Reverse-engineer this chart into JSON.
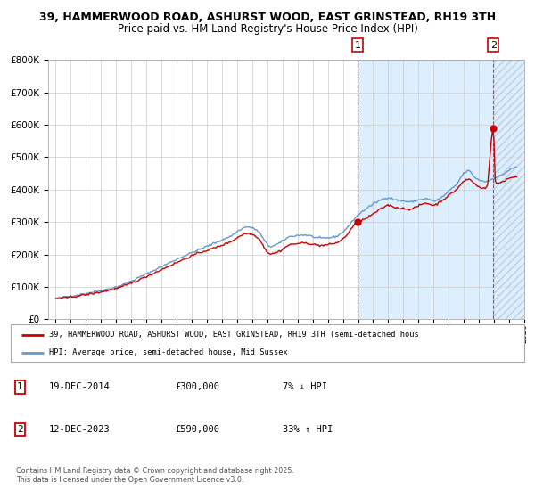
{
  "title_line1": "39, HAMMERWOOD ROAD, ASHURST WOOD, EAST GRINSTEAD, RH19 3TH",
  "title_line2": "Price paid vs. HM Land Registry's House Price Index (HPI)",
  "legend_red": "39, HAMMERWOOD ROAD, ASHURST WOOD, EAST GRINSTEAD, RH19 3TH (semi-detached hous",
  "legend_blue": "HPI: Average price, semi-detached house, Mid Sussex",
  "annotation1_label": "1",
  "annotation1_date": "19-DEC-2014",
  "annotation1_price": "£300,000",
  "annotation1_hpi": "7% ↓ HPI",
  "annotation2_label": "2",
  "annotation2_date": "12-DEC-2023",
  "annotation2_price": "£590,000",
  "annotation2_hpi": "33% ↑ HPI",
  "footer": "Contains HM Land Registry data © Crown copyright and database right 2025.\nThis data is licensed under the Open Government Licence v3.0.",
  "red_color": "#cc0000",
  "blue_color": "#6699cc",
  "vline1_x": 2014.97,
  "vline2_x": 2023.95,
  "point1_x": 2014.97,
  "point1_y": 300000,
  "point2_x": 2023.95,
  "point2_y": 590000,
  "ylim": [
    0,
    800000
  ],
  "xlim": [
    1994.5,
    2026.0
  ],
  "shaded_region_start": 2014.97,
  "shaded_region_end": 2026.0,
  "bg_color": "#ffffff",
  "plot_bg_color": "#ffffff",
  "shaded_color": "#ddeeff",
  "hatch_region_start": 2023.95,
  "hatch_region_end": 2026.0,
  "grid_color": "#cccccc",
  "title_fontsize": 9.5,
  "subtitle_fontsize": 9.0
}
